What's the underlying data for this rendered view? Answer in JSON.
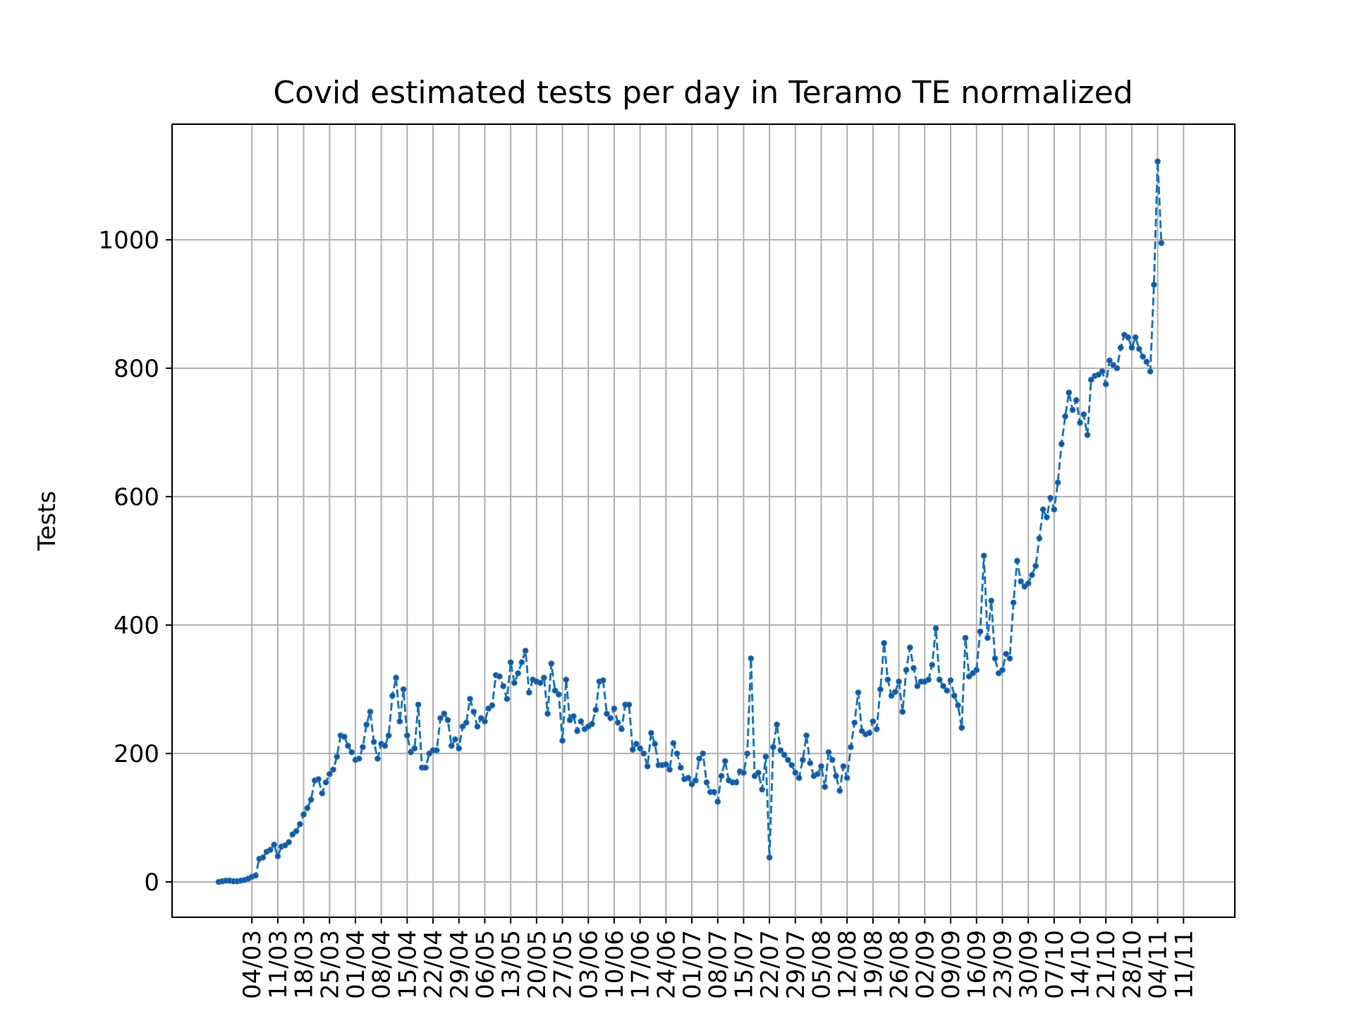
{
  "chart_data": {
    "type": "line",
    "title": "Covid estimated tests per day in Teramo TE normalized",
    "xlabel": "",
    "ylabel": "Tests",
    "ylim": [
      -55,
      1180
    ],
    "grid": true,
    "legend": "none",
    "yticks": [
      0,
      200,
      400,
      600,
      800,
      1000
    ],
    "xtick_labels": [
      "04/03",
      "11/03",
      "18/03",
      "25/03",
      "01/04",
      "08/04",
      "15/04",
      "22/04",
      "29/04",
      "06/05",
      "13/05",
      "20/05",
      "27/05",
      "03/06",
      "10/06",
      "17/06",
      "24/06",
      "01/07",
      "08/07",
      "15/07",
      "22/07",
      "29/07",
      "05/08",
      "12/08",
      "19/08",
      "26/08",
      "02/09",
      "09/09",
      "16/09",
      "23/09",
      "30/09",
      "07/10",
      "14/10",
      "21/10",
      "28/10",
      "04/11",
      "11/11"
    ],
    "colors": {
      "line": "#1f77b4",
      "marker": "#1f4fa0"
    },
    "series": [
      {
        "name": "",
        "start_date": "2020-02-24",
        "values": [
          0,
          1,
          2,
          2,
          1,
          1,
          2,
          3,
          5,
          8,
          10,
          36,
          38,
          47,
          50,
          58,
          40,
          55,
          57,
          62,
          74,
          79,
          90,
          105,
          115,
          128,
          158,
          160,
          138,
          155,
          168,
          175,
          195,
          228,
          226,
          212,
          202,
          190,
          192,
          210,
          245,
          265,
          218,
          192,
          215,
          212,
          228,
          290,
          318,
          250,
          300,
          228,
          202,
          208,
          276,
          178,
          178,
          200,
          205,
          205,
          255,
          262,
          252,
          212,
          222,
          208,
          242,
          248,
          285,
          265,
          242,
          255,
          250,
          270,
          275,
          322,
          320,
          305,
          285,
          342,
          310,
          325,
          342,
          360,
          295,
          315,
          312,
          310,
          318,
          262,
          340,
          298,
          292,
          220,
          315,
          252,
          258,
          235,
          250,
          238,
          242,
          246,
          268,
          312,
          314,
          262,
          255,
          270,
          248,
          238,
          276,
          276,
          206,
          215,
          208,
          200,
          180,
          232,
          215,
          182,
          182,
          183,
          175,
          216,
          200,
          178,
          160,
          162,
          152,
          158,
          192,
          200,
          155,
          140,
          140,
          125,
          165,
          188,
          158,
          155,
          155,
          172,
          170,
          200,
          348,
          165,
          170,
          144,
          195,
          38,
          210,
          245,
          205,
          198,
          190,
          182,
          170,
          162,
          190,
          228,
          185,
          165,
          168,
          180,
          148,
          202,
          190,
          165,
          142,
          180,
          162,
          210,
          248,
          295,
          235,
          230,
          232,
          250,
          238,
          300,
          372,
          315,
          290,
          296,
          312,
          265,
          330,
          365,
          333,
          305,
          312,
          312,
          315,
          338,
          395,
          315,
          305,
          298,
          314,
          290,
          275,
          240,
          380,
          320,
          325,
          330,
          390,
          508,
          380,
          438,
          348,
          325,
          330,
          355,
          348,
          435,
          500,
          468,
          460,
          465,
          478,
          492,
          535,
          580,
          568,
          598,
          580,
          622,
          682,
          725,
          762,
          735,
          750,
          715,
          728,
          696,
          782,
          788,
          790,
          795,
          775,
          812,
          805,
          800,
          832,
          852,
          848,
          832,
          848,
          830,
          818,
          810,
          795,
          930,
          1122,
          995
        ]
      }
    ]
  }
}
